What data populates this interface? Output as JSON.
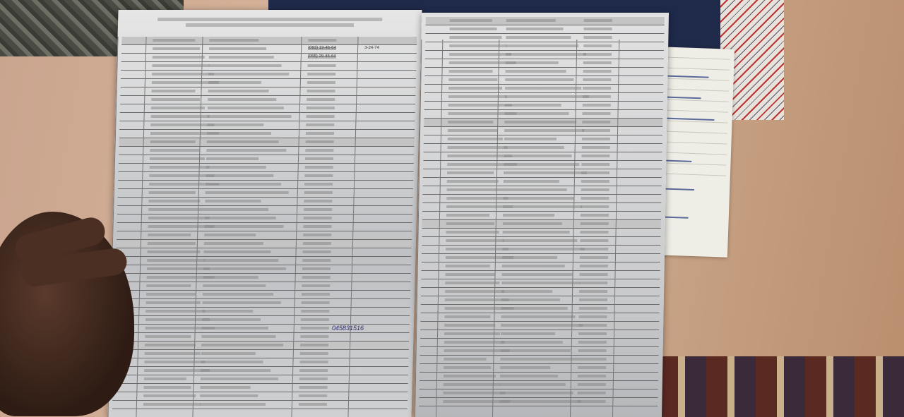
{
  "scene": "handheld printed phone directory sheets on a bed",
  "left_sheet": {
    "visible_values": [
      "(093) 19-46-64",
      "(055) 29-46-64",
      "3-24-74"
    ],
    "handwritten_mark": "045831516"
  },
  "colors": {
    "paper": "#dcdcdc",
    "ink": "#333333",
    "background": "#d9b79c"
  }
}
